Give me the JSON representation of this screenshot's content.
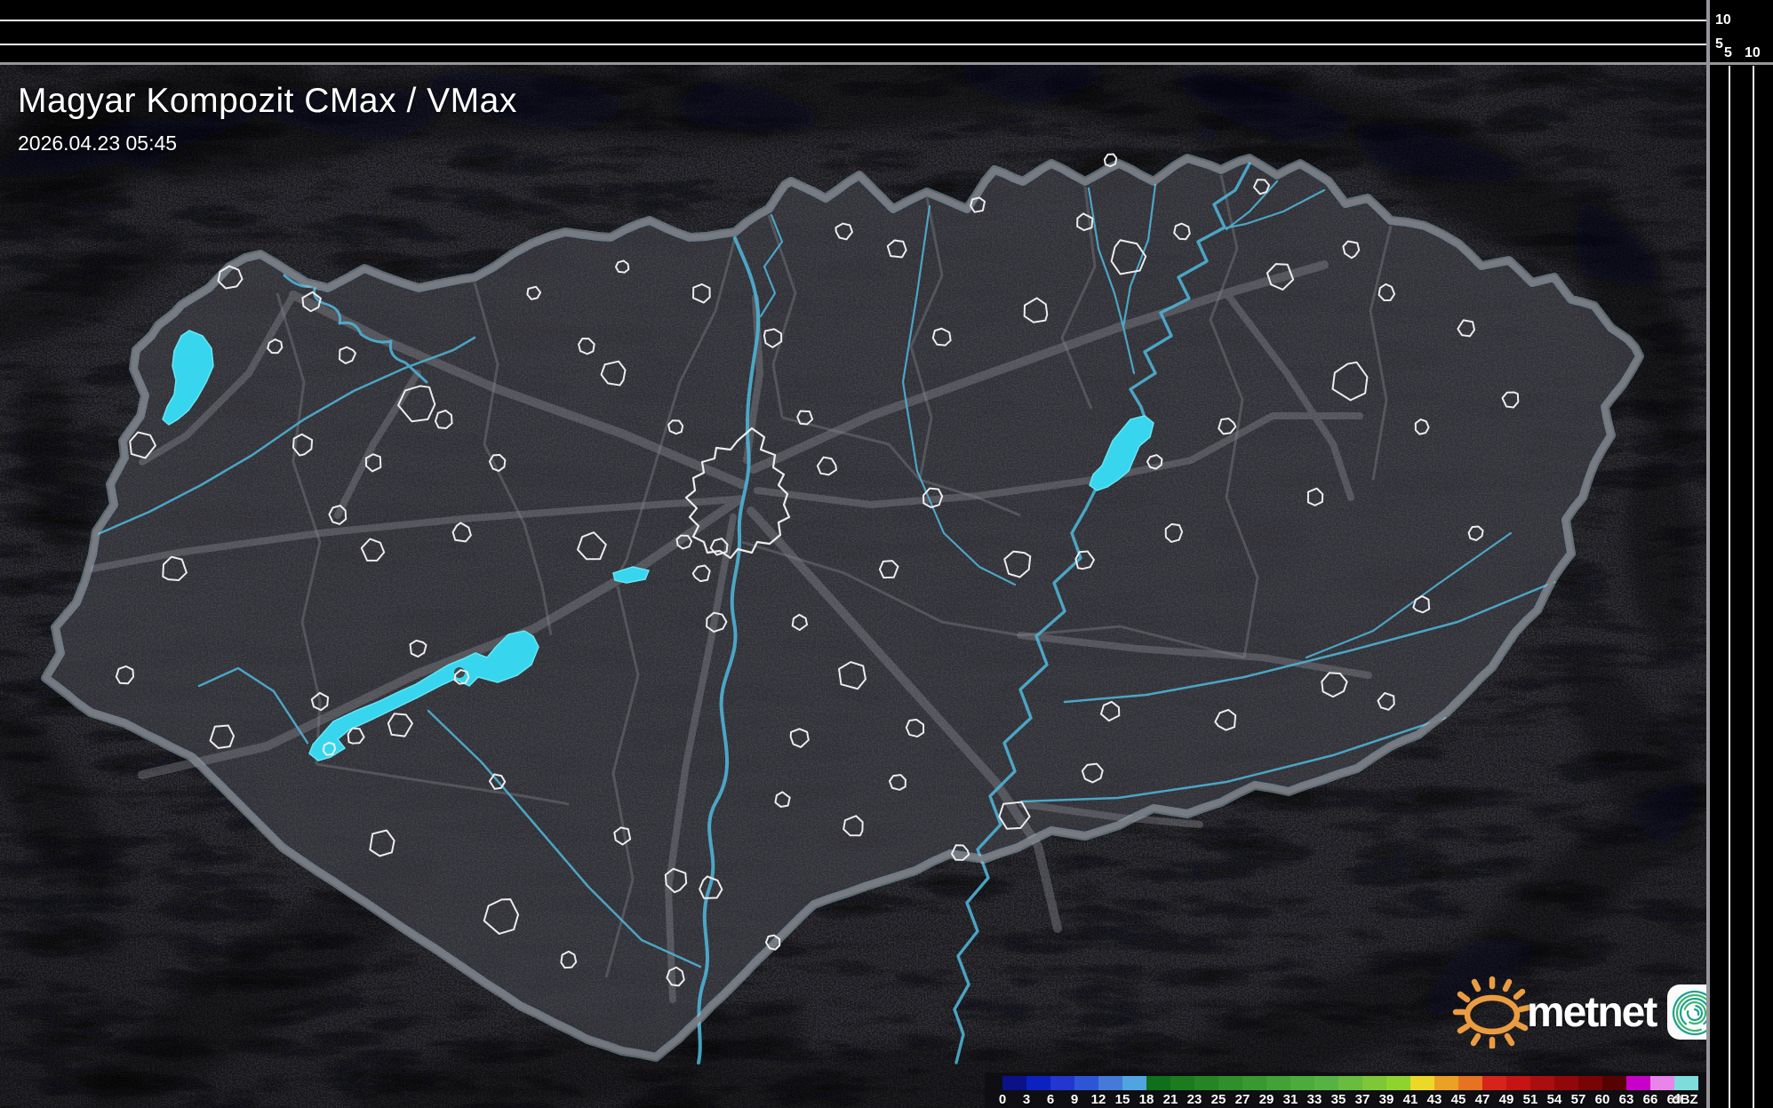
{
  "header": {
    "title": "Magyar Kompozit CMax / VMax",
    "timestamp": "2026.04.23 05:45"
  },
  "scales": {
    "top": [
      "10",
      "5"
    ],
    "right": [
      "5",
      "10"
    ]
  },
  "legend": {
    "unit": "dBZ",
    "ticks": [
      {
        "value": "0",
        "color": "#0b1187"
      },
      {
        "value": "3",
        "color": "#0b22c0"
      },
      {
        "value": "6",
        "color": "#2336cf"
      },
      {
        "value": "9",
        "color": "#2f55d7"
      },
      {
        "value": "12",
        "color": "#457ad9"
      },
      {
        "value": "15",
        "color": "#50a5e1"
      },
      {
        "value": "18",
        "color": "#0f6f1b"
      },
      {
        "value": "21",
        "color": "#1b7b1f"
      },
      {
        "value": "23",
        "color": "#258525"
      },
      {
        "value": "25",
        "color": "#2e8f2b"
      },
      {
        "value": "27",
        "color": "#389931"
      },
      {
        "value": "29",
        "color": "#42a237"
      },
      {
        "value": "31",
        "color": "#4cab3d"
      },
      {
        "value": "33",
        "color": "#56b343"
      },
      {
        "value": "35",
        "color": "#6abc3f"
      },
      {
        "value": "37",
        "color": "#7ec739"
      },
      {
        "value": "39",
        "color": "#8fd32e"
      },
      {
        "value": "41",
        "color": "#edd827"
      },
      {
        "value": "43",
        "color": "#eba026"
      },
      {
        "value": "45",
        "color": "#e67321"
      },
      {
        "value": "47",
        "color": "#d6241b"
      },
      {
        "value": "49",
        "color": "#c61313"
      },
      {
        "value": "51",
        "color": "#aa0e0f"
      },
      {
        "value": "54",
        "color": "#92080a"
      },
      {
        "value": "57",
        "color": "#780405"
      },
      {
        "value": "60",
        "color": "#560203"
      },
      {
        "value": "63",
        "color": "#c900c9"
      },
      {
        "value": "66",
        "color": "#e985e8"
      },
      {
        "value": "69",
        "color": "#7edddc"
      }
    ]
  },
  "logo": {
    "text": "metnet",
    "sun_color": "#eb9c41",
    "spiral_color": "#1da18f"
  },
  "map_colors": {
    "lake": "#38d6ee",
    "river": "#4fb2d4",
    "country_border": "#7b7b81",
    "border_glow": "#aacfe0",
    "county_border": "#5f5f66",
    "road": "#8d8d95",
    "city_outline": "#ededed",
    "interior": "#45454d",
    "exterior": "#34343b"
  }
}
